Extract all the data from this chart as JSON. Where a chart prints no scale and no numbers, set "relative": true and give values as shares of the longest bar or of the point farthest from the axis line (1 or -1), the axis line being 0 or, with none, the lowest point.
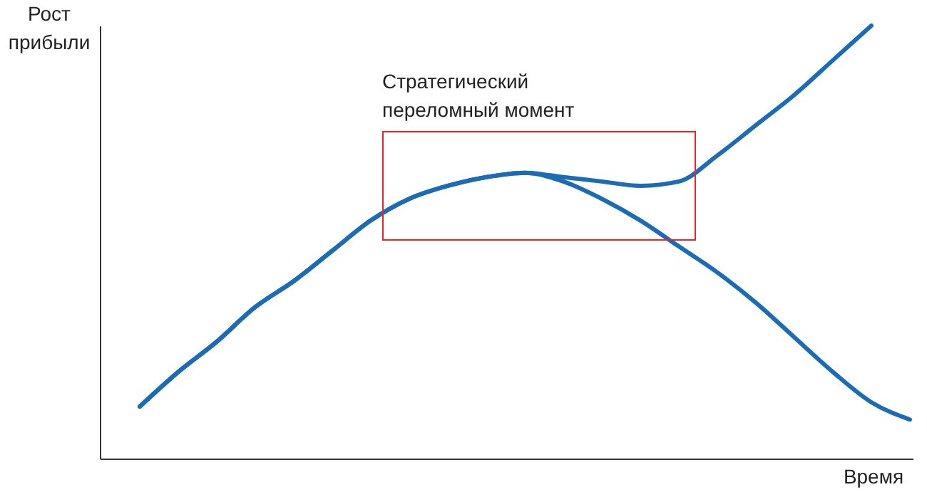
{
  "chart_data": {
    "type": "line",
    "relative": true,
    "xlabel": "Время",
    "ylabel": "Рост прибыли",
    "annotations": [
      "Стратегический переломный момент"
    ],
    "categories": [
      null,
      null,
      null,
      null,
      null,
      null,
      null,
      null,
      null,
      null,
      null,
      null,
      null,
      null,
      null,
      null,
      null,
      null,
      null,
      null,
      null
    ],
    "series": [
      {
        "color": "#1b6cb5",
        "values": [
          0.12,
          0.2,
          0.27,
          0.35,
          0.41,
          0.48,
          0.55,
          0.6,
          0.63,
          0.65,
          0.66,
          0.64,
          0.6,
          0.55,
          0.49,
          0.43,
          0.36,
          0.28,
          0.2,
          0.13,
          0.09
        ]
      },
      {
        "color": "#1b6cb5",
        "values": [
          0.12,
          0.2,
          0.27,
          0.35,
          0.41,
          0.48,
          0.55,
          0.6,
          0.63,
          0.65,
          0.66,
          0.65,
          0.64,
          0.63,
          0.64,
          0.7,
          0.77,
          0.84,
          0.92,
          1.0,
          null
        ]
      }
    ]
  }
}
